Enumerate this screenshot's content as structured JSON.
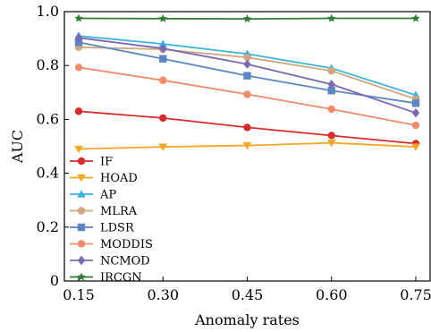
{
  "chart_data": {
    "type": "line",
    "xlabel": "Anomaly rates",
    "ylabel": "AUC",
    "x": [
      0.15,
      0.3,
      0.45,
      0.6,
      0.75
    ],
    "x_tick_labels": [
      "0.15",
      "0.30",
      "0.45",
      "0.60",
      "0.75"
    ],
    "ylim": [
      0,
      1.0
    ],
    "y_ticks": [
      0,
      0.2,
      0.4,
      0.6,
      0.8,
      1.0
    ],
    "y_tick_labels": [
      "0",
      "0.2",
      "0.4",
      "0.6",
      "0.8",
      "1.0"
    ],
    "grid": false,
    "legend_position": "bottom-left",
    "series": [
      {
        "name": "IF",
        "color": "#d62c2c",
        "marker": "circle",
        "values": [
          0.63,
          0.605,
          0.57,
          0.54,
          0.51
        ]
      },
      {
        "name": "HOAD",
        "color": "#f5a623",
        "marker": "triangle-down",
        "values": [
          0.49,
          0.498,
          0.503,
          0.513,
          0.498
        ]
      },
      {
        "name": "AP",
        "color": "#3bb3e0",
        "marker": "triangle-up",
        "values": [
          0.91,
          0.88,
          0.843,
          0.79,
          0.69
        ]
      },
      {
        "name": "MLRA",
        "color": "#d2a77d",
        "marker": "circle",
        "values": [
          0.868,
          0.86,
          0.83,
          0.78,
          0.675
        ]
      },
      {
        "name": "LDSR",
        "color": "#5b86c4",
        "marker": "square",
        "values": [
          0.886,
          0.825,
          0.762,
          0.707,
          0.66
        ]
      },
      {
        "name": "MODDIS",
        "color": "#f08b6b",
        "marker": "circle",
        "values": [
          0.793,
          0.745,
          0.693,
          0.638,
          0.578
        ]
      },
      {
        "name": "NCMOD",
        "color": "#7b68b0",
        "marker": "diamond",
        "values": [
          0.903,
          0.863,
          0.805,
          0.73,
          0.624
        ]
      },
      {
        "name": "IRCGN",
        "color": "#2e7d32",
        "marker": "star",
        "values": [
          0.975,
          0.974,
          0.973,
          0.975,
          0.975
        ]
      }
    ]
  }
}
